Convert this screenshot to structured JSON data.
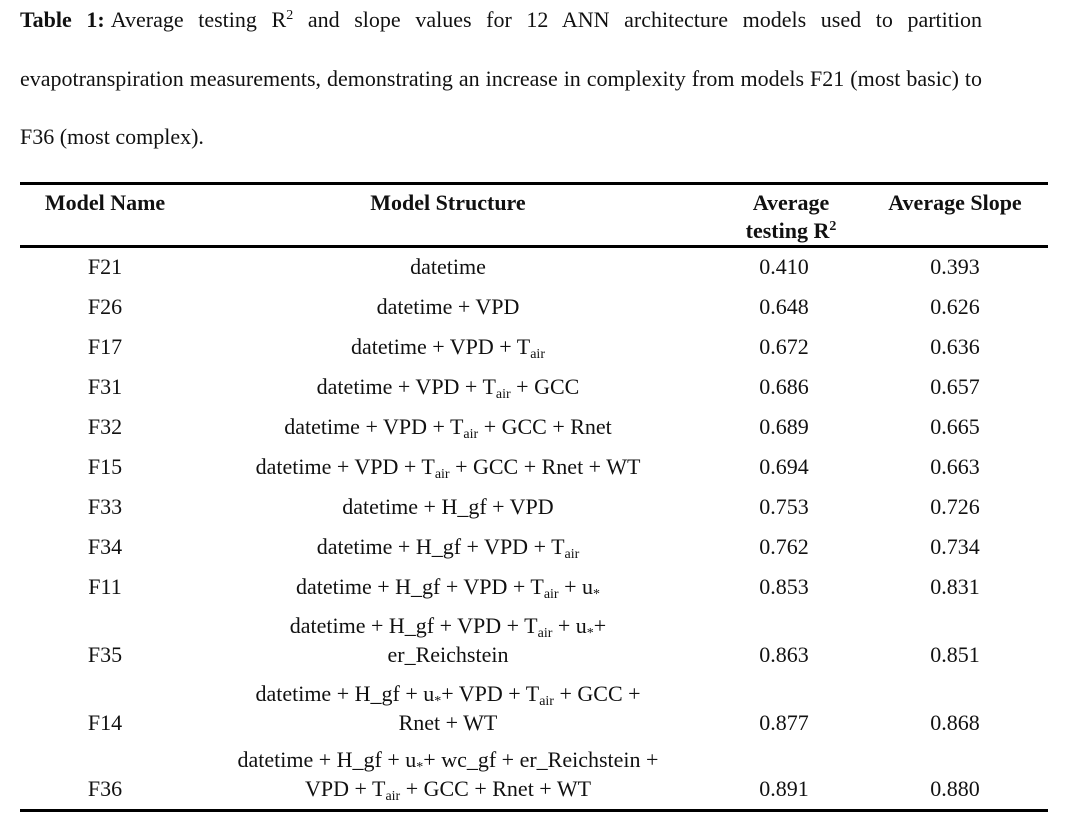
{
  "caption": {
    "label": "Table 1:",
    "text": [
      "Average testing R",
      {
        "sup": "2"
      },
      " and slope values for 12 ANN architecture models used to partition evapotranspiration measurements, demonstrating an increase in complexity from models F21 (most basic) to F36 (most complex)."
    ]
  },
  "table": {
    "header": {
      "name": "Model Name",
      "structure": "Model Structure",
      "r2": [
        "Average testing R",
        {
          "sup": "2"
        }
      ],
      "slope": "Average Slope"
    },
    "rows": [
      {
        "name": "F21",
        "structure": [
          [
            "datetime"
          ]
        ],
        "r2": "0.410",
        "slope": "0.393"
      },
      {
        "name": "F26",
        "structure": [
          [
            "datetime + VPD"
          ]
        ],
        "r2": "0.648",
        "slope": "0.626"
      },
      {
        "name": "F17",
        "structure": [
          [
            "datetime + VPD + T",
            {
              "sub": "air"
            }
          ]
        ],
        "r2": "0.672",
        "slope": "0.636"
      },
      {
        "name": "F31",
        "structure": [
          [
            "datetime + VPD + T",
            {
              "sub": "air"
            },
            " + GCC"
          ]
        ],
        "r2": "0.686",
        "slope": "0.657"
      },
      {
        "name": "F32",
        "structure": [
          [
            "datetime + VPD + T",
            {
              "sub": "air"
            },
            " + GCC + Rnet"
          ]
        ],
        "r2": "0.689",
        "slope": "0.665"
      },
      {
        "name": "F15",
        "structure": [
          [
            "datetime + VPD + T",
            {
              "sub": "air"
            },
            " + GCC + Rnet + WT"
          ]
        ],
        "r2": "0.694",
        "slope": "0.663"
      },
      {
        "name": "F33",
        "structure": [
          [
            "datetime + H_gf + VPD"
          ]
        ],
        "r2": "0.753",
        "slope": "0.726"
      },
      {
        "name": "F34",
        "structure": [
          [
            "datetime + H_gf + VPD + T",
            {
              "sub": "air"
            }
          ]
        ],
        "r2": "0.762",
        "slope": "0.734"
      },
      {
        "name": "F11",
        "structure": [
          [
            "datetime + H_gf + VPD + T",
            {
              "sub": "air"
            },
            " + u",
            {
              "sub": "*"
            }
          ]
        ],
        "r2": "0.853",
        "slope": "0.831"
      },
      {
        "name": "F35",
        "structure": [
          [
            "datetime + H_gf + VPD + T",
            {
              "sub": "air"
            },
            " + u",
            {
              "sub": "*"
            },
            "+"
          ],
          [
            "er_Reichstein"
          ]
        ],
        "r2": "0.863",
        "slope": "0.851"
      },
      {
        "name": "F14",
        "structure": [
          [
            "datetime + H_gf + u",
            {
              "sub": "*"
            },
            "+ VPD + T",
            {
              "sub": "air"
            },
            " + GCC +"
          ],
          [
            "Rnet + WT"
          ]
        ],
        "r2": "0.877",
        "slope": "0.868"
      },
      {
        "name": "F36",
        "structure": [
          [
            "datetime + H_gf + u",
            {
              "sub": "*"
            },
            "+ wc_gf + er_Reichstein +"
          ],
          [
            "VPD + T",
            {
              "sub": "air"
            },
            " + GCC + Rnet + WT"
          ]
        ],
        "r2": "0.891",
        "slope": "0.880"
      }
    ]
  }
}
